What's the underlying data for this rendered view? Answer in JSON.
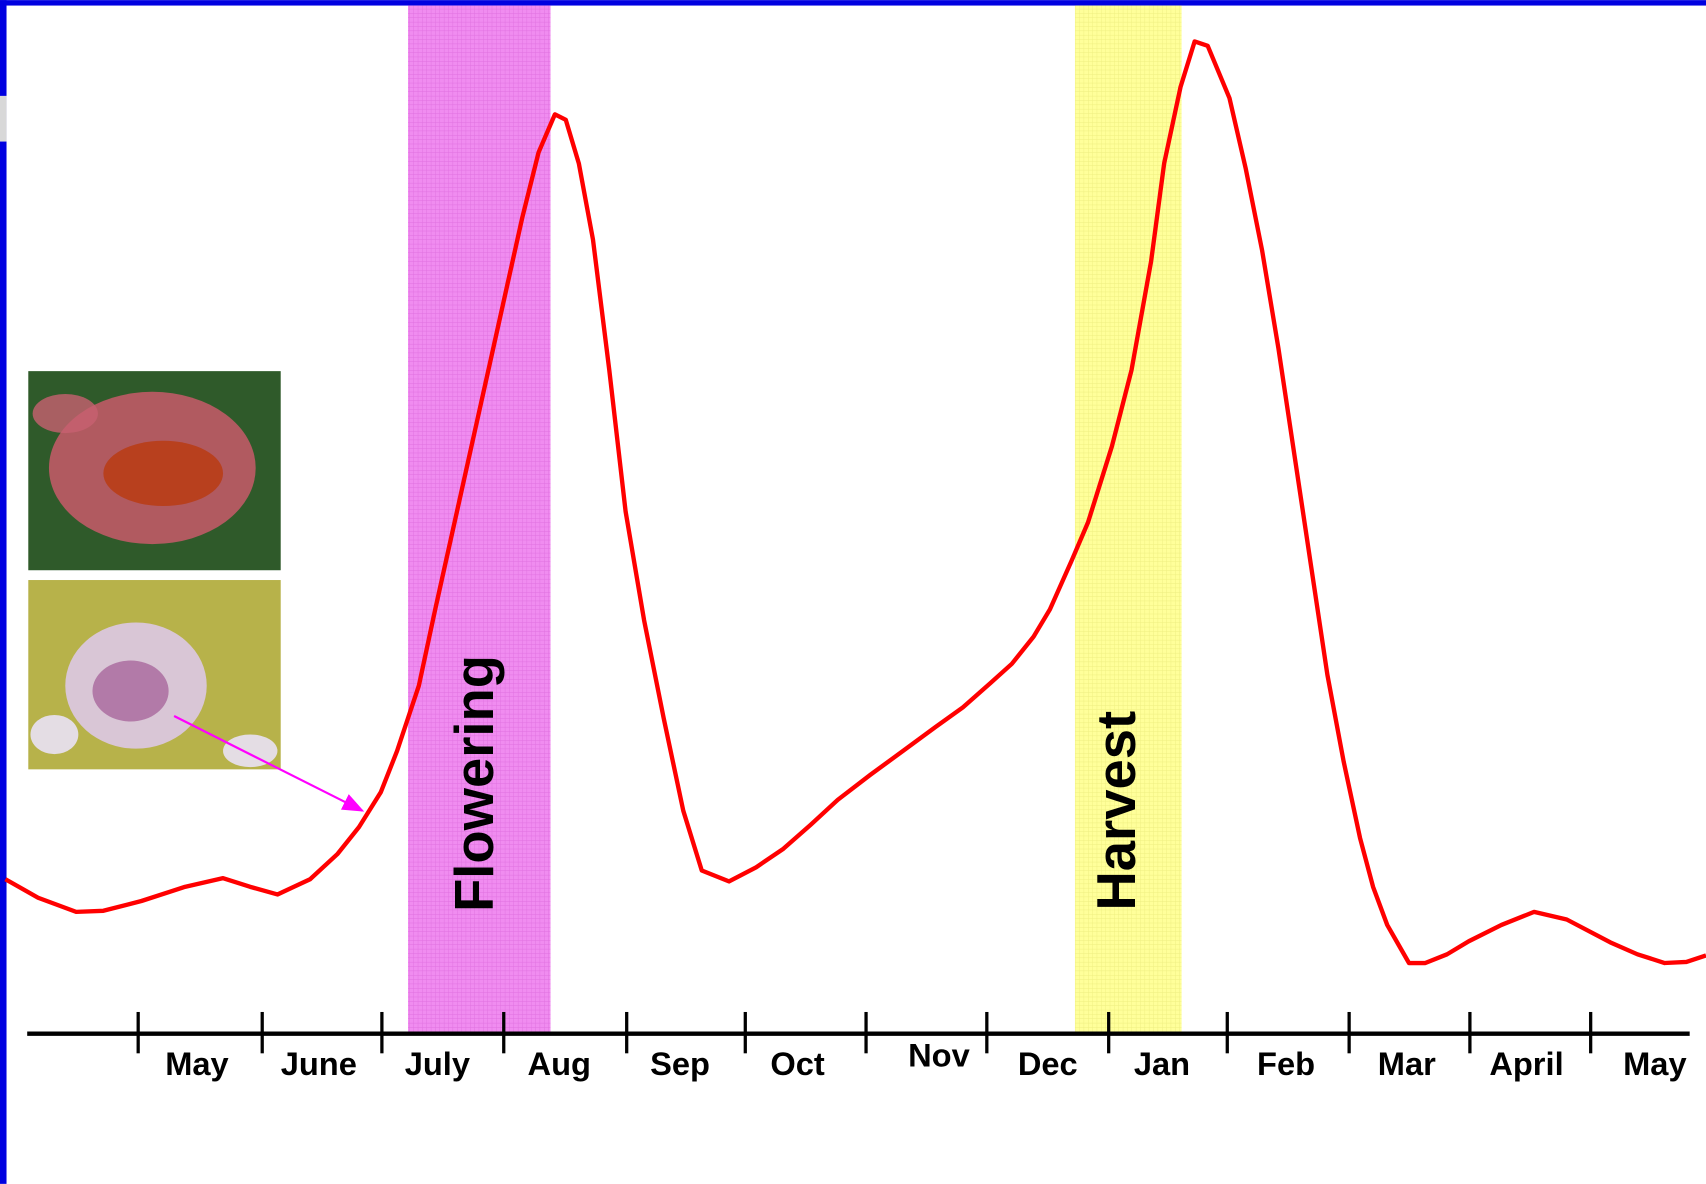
{
  "timeline": {
    "months": [
      "May",
      "June",
      "July",
      "Aug",
      "Sep",
      "Oct",
      "Nov",
      "Dec",
      "Jan",
      "Feb",
      "Mar",
      "April",
      "May"
    ],
    "bands": [
      "Flowering",
      "Harvest"
    ]
  }
}
